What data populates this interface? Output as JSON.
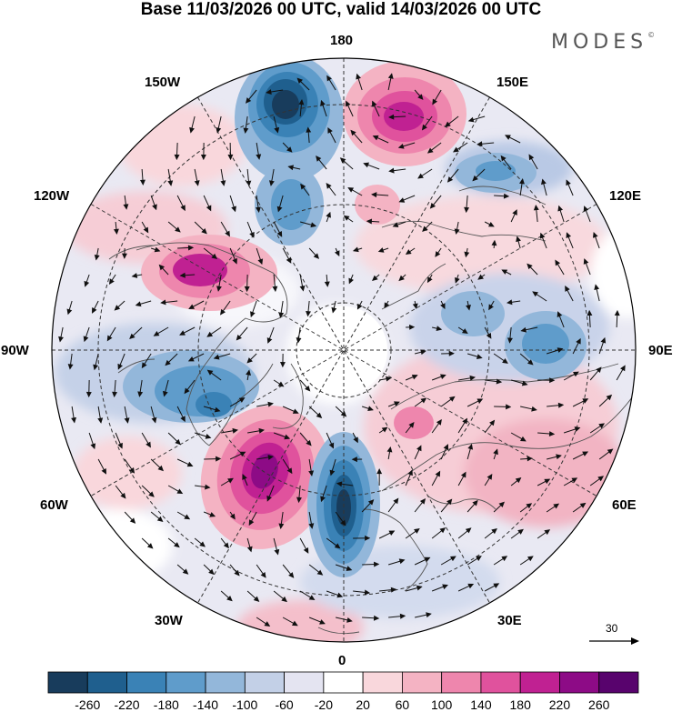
{
  "title": "Base 11/03/2026 00 UTC, valid 14/03/2026 00 UTC",
  "brand": "MODES",
  "brand_mark": "©",
  "longitude_labels": {
    "n180": "180",
    "e150": "150E",
    "e120": "120E",
    "e90": "90E",
    "e60": "60E",
    "e30": "30E",
    "z0": "0",
    "w30": "30W",
    "w60": "60W",
    "w90": "90W",
    "w120": "120W",
    "w150": "150W"
  },
  "vector_reference": "30",
  "colorbar": {
    "colors": [
      "#183c5c",
      "#1f5f8e",
      "#3a82b6",
      "#5f9ccb",
      "#93b7da",
      "#c3d0e7",
      "#e4e4f1",
      "#ffffff",
      "#f9d7dc",
      "#f4b3c3",
      "#ee86ad",
      "#e0529d",
      "#c02192",
      "#8d0b86",
      "#58036d"
    ],
    "labels": [
      "-260",
      "-220",
      "-180",
      "-140",
      "-100",
      "-60",
      "-20",
      "20",
      "60",
      "100",
      "140",
      "180",
      "220",
      "260"
    ]
  },
  "colors": {
    "positive": "#c02192",
    "negative": "#1f5f8e",
    "grid": "#333333"
  }
}
